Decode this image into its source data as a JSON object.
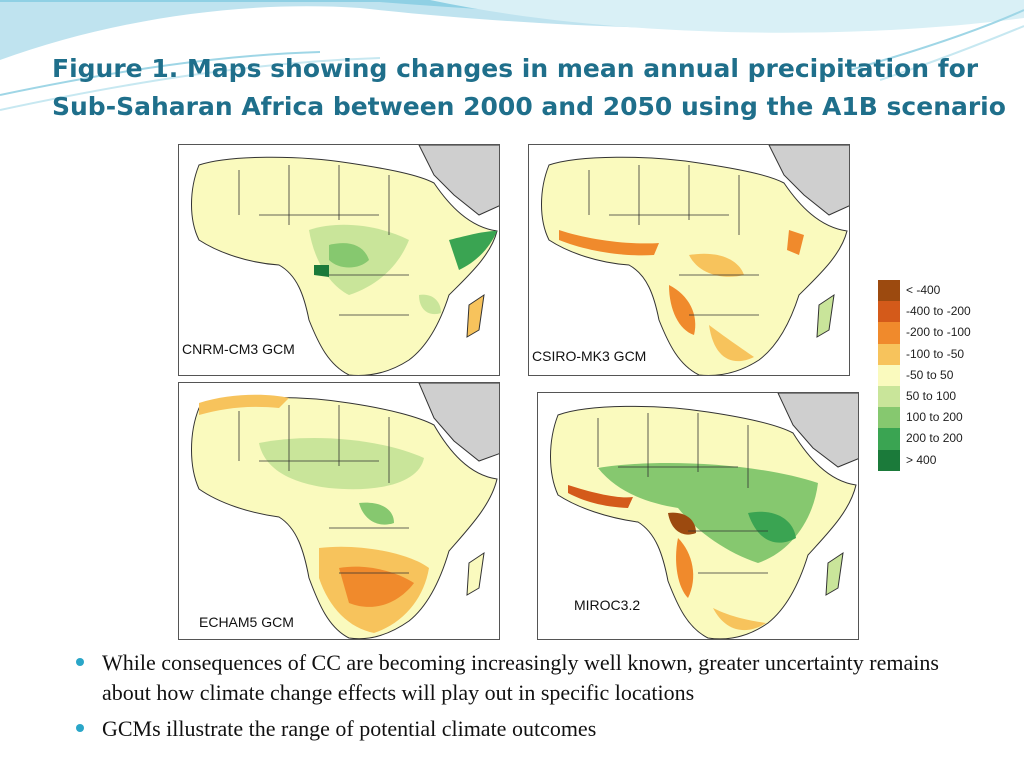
{
  "slide": {
    "title": "Figure 1. Maps showing changes in mean annual precipitation for Sub-Saharan Africa between 2000 and 2050 using the A1B scenario",
    "title_color": "#1f6f8b",
    "accent_color": "#2aa6c8"
  },
  "maps": [
    {
      "label": "CNRM-CM3 GCM"
    },
    {
      "label": "CSIRO-MK3 GCM"
    },
    {
      "label": "ECHAM5 GCM"
    },
    {
      "label": "MIROC3.2"
    }
  ],
  "legend": {
    "items": [
      {
        "label": "< -400",
        "color": "#9c4a0f"
      },
      {
        "label": "-400 to -200",
        "color": "#d45a1a"
      },
      {
        "label": "-200 to -100",
        "color": "#f08a2c"
      },
      {
        "label": "-100 to -50",
        "color": "#f7c35c"
      },
      {
        "label": "-50 to 50",
        "color": "#fafabe"
      },
      {
        "label": "50 to 100",
        "color": "#c9e59a"
      },
      {
        "label": "100 to 200",
        "color": "#86c86f"
      },
      {
        "label": "200 to 200",
        "color": "#3aa452"
      },
      {
        "label": "> 400",
        "color": "#1b7a3a"
      }
    ]
  },
  "bullets": [
    {
      "text": "While consequences of CC are becoming increasingly well known, greater uncertainty remains about how climate change effects will play out in specific locations"
    },
    {
      "text": "GCMs illustrate the range of potential climate outcomes"
    }
  ]
}
